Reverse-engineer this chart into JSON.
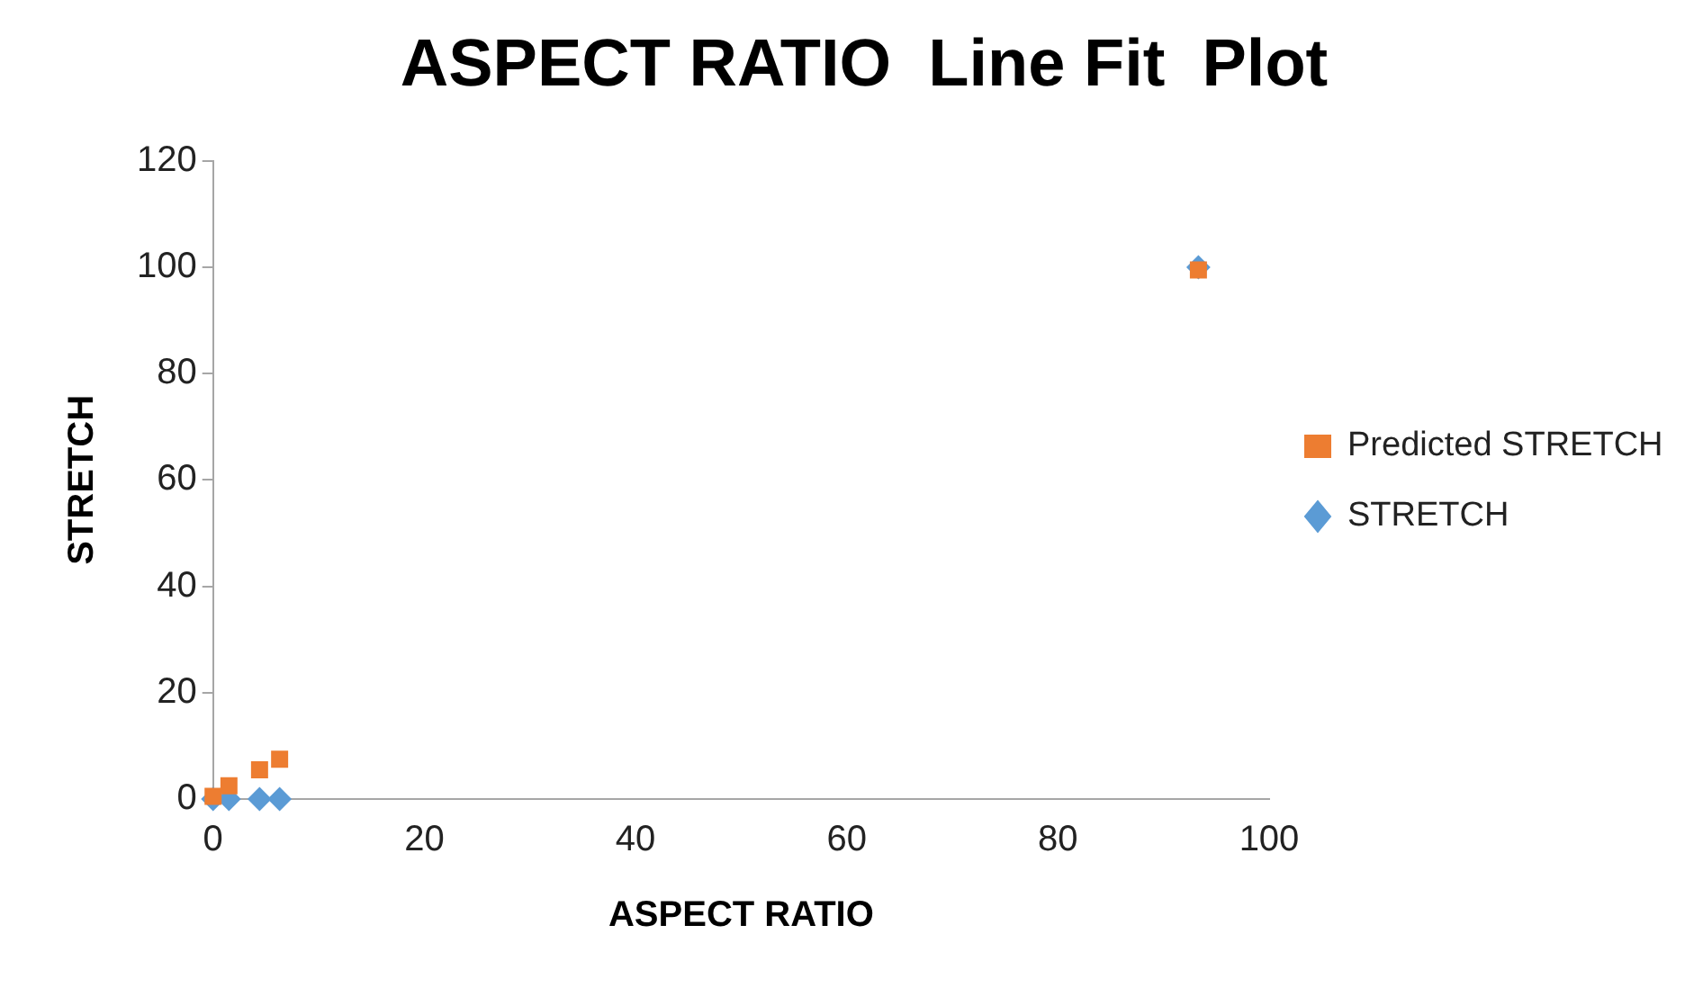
{
  "chart_data": {
    "type": "scatter",
    "title": "ASPECT RATIO  Line Fit  Plot",
    "xlabel": "ASPECT RATIO",
    "ylabel": "STRETCH",
    "x": [
      0,
      1.5,
      4.4,
      6.3,
      93.3
    ],
    "series": [
      {
        "name": "STRETCH",
        "color": "#5b9bd5",
        "values": [
          0,
          0,
          0,
          0,
          100
        ],
        "marker": "diamond"
      },
      {
        "name": "Predicted STRETCH",
        "color": "#ed7d31",
        "values": [
          0.5,
          2.5,
          5.5,
          7.5,
          99.5
        ],
        "marker": "square"
      }
    ],
    "xlim": [
      0,
      100
    ],
    "xticks": [
      0,
      20,
      40,
      60,
      80,
      100
    ],
    "ylim": [
      0,
      120
    ],
    "yticks": [
      0,
      20,
      40,
      60,
      80,
      100,
      120
    ],
    "grid": false,
    "legend": "right"
  }
}
